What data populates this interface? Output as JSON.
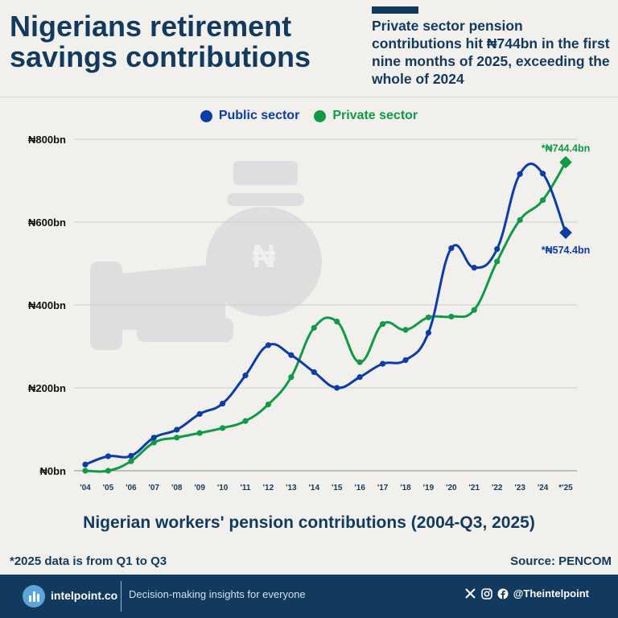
{
  "header": {
    "title": "Nigerians retirement savings contributions",
    "callout": "Private sector pension contributions hit ₦744bn in the first nine months of 2025, exceeding the whole of 2024"
  },
  "legend": {
    "public": "Public sector",
    "private": "Private sector"
  },
  "colors": {
    "public": "#0b3ca8",
    "private": "#0f9a45",
    "title": "#123a5e",
    "footer": "#123a5e"
  },
  "chart_data": {
    "type": "line",
    "title": "Nigerian workers' pension contributions (2004-Q3, 2025)",
    "categories": [
      "'04",
      "'05",
      "'06",
      "'07",
      "'08",
      "'09",
      "'10",
      "'11",
      "'12",
      "'13",
      "'14",
      "'15",
      "'16",
      "'17",
      "'18",
      "'19",
      "'20",
      "'21",
      "'22",
      "'23",
      "'24",
      "*'25"
    ],
    "y_ticks": [
      "₦0bn",
      "₦200bn",
      "₦400bn",
      "₦600bn",
      "₦800bn"
    ],
    "ylim": [
      0,
      800
    ],
    "grid": true,
    "legend_position": "top-center",
    "series": [
      {
        "name": "Public sector",
        "values": [
          15,
          35,
          36,
          80,
          99,
          137,
          162,
          230,
          303,
          279,
          238,
          200,
          226,
          258,
          267,
          333,
          537,
          490,
          535,
          716,
          717,
          574.4
        ]
      },
      {
        "name": "Private sector",
        "values": [
          0,
          0,
          23,
          68,
          80,
          91,
          103,
          120,
          160,
          226,
          345,
          360,
          262,
          354,
          340,
          370,
          372,
          388,
          505,
          605,
          653,
          744.4
        ]
      }
    ],
    "annotations": {
      "private_end": "*₦744.4bn",
      "public_end": "*₦574.4bn"
    }
  },
  "footer": {
    "footnote": "*2025 data is from Q1 to Q3",
    "source": "Source: PENCOM",
    "brand": "intelpoint.co",
    "tagline": "Decision-making insights for everyone",
    "handle": "@Theintelpoint"
  }
}
